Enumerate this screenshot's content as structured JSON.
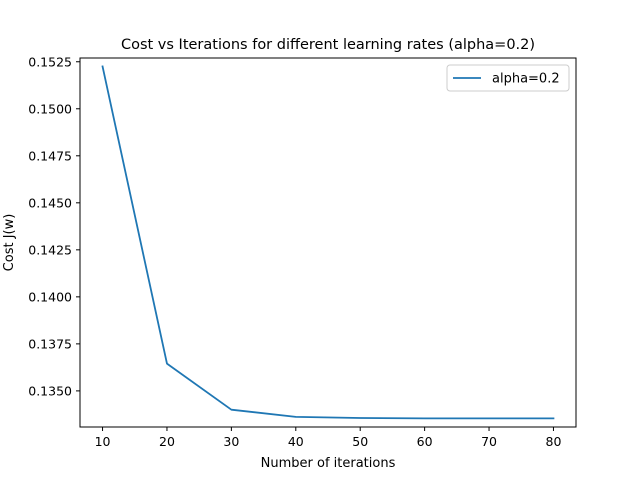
{
  "chart_data": {
    "type": "line",
    "title": "Cost vs Iterations for different learning rates (alpha=0.2)",
    "xlabel": "Number of iterations",
    "ylabel": "Cost J(w)",
    "x": [
      10,
      20,
      30,
      40,
      50,
      60,
      70,
      80
    ],
    "series": [
      {
        "name": "alpha=0.2",
        "color": "#1f77b4",
        "values": [
          0.15225,
          0.13645,
          0.134,
          0.13362,
          0.13356,
          0.13354,
          0.13354,
          0.13354
        ]
      }
    ],
    "xlim": [
      6.5,
      83.5
    ],
    "ylim": [
      0.13308,
      0.1527
    ],
    "xticks": [
      10,
      20,
      30,
      40,
      50,
      60,
      70,
      80
    ],
    "xtick_labels": [
      "10",
      "20",
      "30",
      "40",
      "50",
      "60",
      "70",
      "80"
    ],
    "yticks": [
      0.135,
      0.1375,
      0.14,
      0.1425,
      0.145,
      0.1475,
      0.15,
      0.1525
    ],
    "ytick_labels": [
      "0.1350",
      "0.1375",
      "0.1400",
      "0.1425",
      "0.1450",
      "0.1475",
      "0.1500",
      "0.1525"
    ],
    "grid": false,
    "legend_position": "top-right"
  }
}
